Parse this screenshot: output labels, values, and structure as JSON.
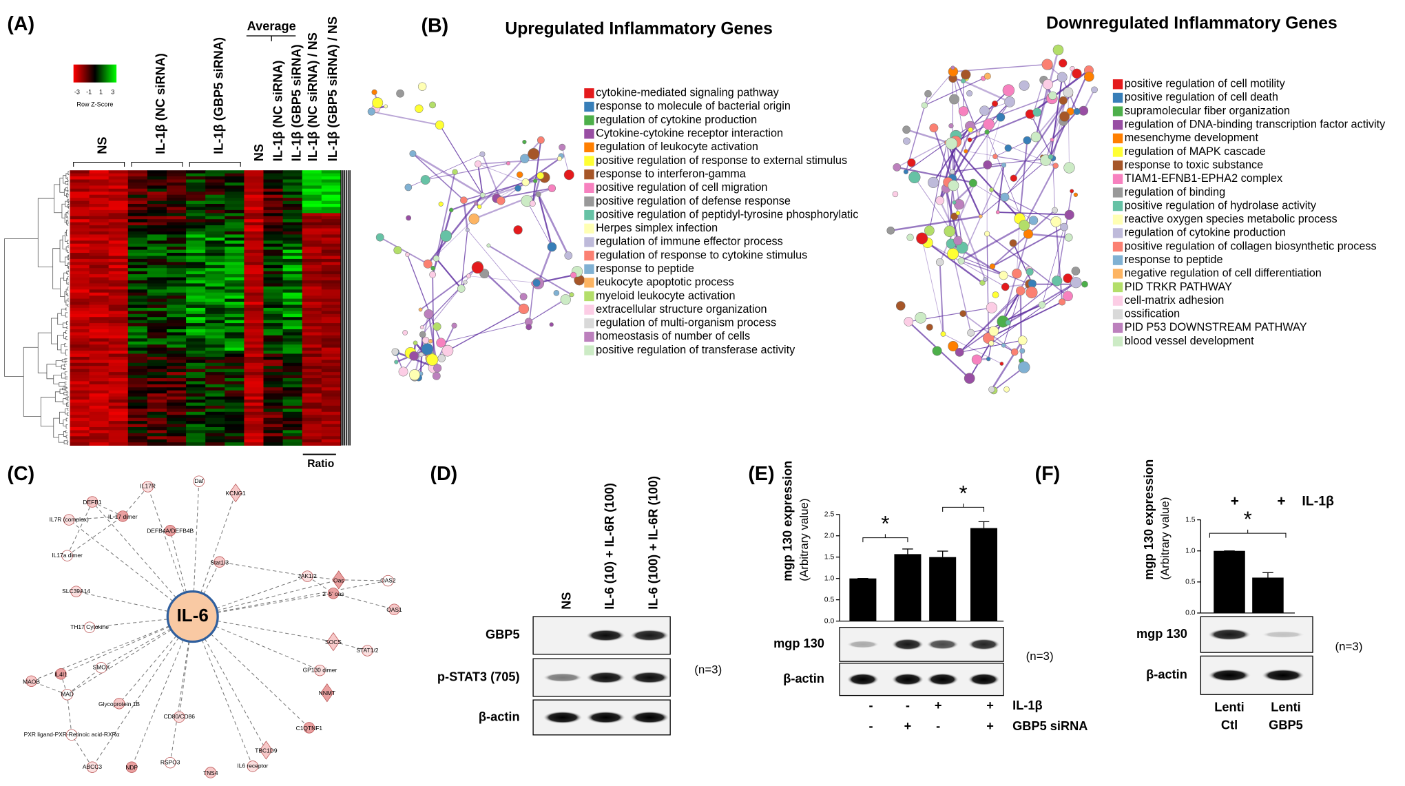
{
  "panel_labels": [
    "(A)",
    "(B)",
    "(C)",
    "(D)",
    "(E)",
    "(F)"
  ],
  "A": {
    "legend_title": "Row Z-Score",
    "legend_ticks": [
      -3,
      -1,
      1,
      3
    ],
    "columns": [
      "NS",
      "IL-1β (NC siRNA)",
      "IL-1β (GBP5 siRNA)"
    ],
    "average_label": "Average",
    "average_columns": [
      "NS",
      "IL-1β (NC siRNA)",
      "IL-1β (GBP5 siRNA)"
    ],
    "ratio_columns": [
      "IL-1β (NC siRNA) / NS",
      "IL-1β (GBP5 siRNA) / NS"
    ],
    "ratio_label": "Ratio"
  },
  "B": {
    "up": {
      "title": "Upregulated Inflammatory Genes",
      "terms": [
        {
          "label": "cytokine-mediated signaling pathway",
          "color": "#e41a1c"
        },
        {
          "label": "response to molecule of bacterial origin",
          "color": "#377eb8"
        },
        {
          "label": "regulation of cytokine production",
          "color": "#4daf4a"
        },
        {
          "label": "Cytokine-cytokine receptor interaction",
          "color": "#984ea3"
        },
        {
          "label": "regulation of leukocyte activation",
          "color": "#ff7f00"
        },
        {
          "label": "positive regulation of response to external stimulus",
          "color": "#ffff33"
        },
        {
          "label": "response to interferon-gamma",
          "color": "#a65628"
        },
        {
          "label": "positive regulation of cell migration",
          "color": "#f781bf"
        },
        {
          "label": "positive regulation of defense response",
          "color": "#999999"
        },
        {
          "label": "positive regulation of peptidyl-tyrosine phosphorylatic",
          "color": "#66c2a5"
        },
        {
          "label": "Herpes simplex infection",
          "color": "#ffffb3"
        },
        {
          "label": "regulation of immune effector process",
          "color": "#bebada"
        },
        {
          "label": "regulation of response to cytokine stimulus",
          "color": "#fb8072"
        },
        {
          "label": "response to peptide",
          "color": "#80b1d3"
        },
        {
          "label": "leukocyte apoptotic process",
          "color": "#fdb462"
        },
        {
          "label": "myeloid leukocyte activation",
          "color": "#b3de69"
        },
        {
          "label": "extracellular structure organization",
          "color": "#fccde5"
        },
        {
          "label": "regulation of multi-organism process",
          "color": "#d9d9d9"
        },
        {
          "label": "homeostasis of number of cells",
          "color": "#bc80bd"
        },
        {
          "label": "positive regulation of transferase activity",
          "color": "#ccebc5"
        }
      ]
    },
    "down": {
      "title": "Downregulated Inflammatory Genes",
      "terms": [
        {
          "label": "positive regulation of cell motility",
          "color": "#e41a1c"
        },
        {
          "label": "positive regulation of cell death",
          "color": "#377eb8"
        },
        {
          "label": "supramolecular fiber organization",
          "color": "#4daf4a"
        },
        {
          "label": "regulation of DNA-binding transcription factor activity",
          "color": "#984ea3"
        },
        {
          "label": "mesenchyme development",
          "color": "#ff7f00"
        },
        {
          "label": "regulation of MAPK cascade",
          "color": "#ffff33"
        },
        {
          "label": "response to toxic substance",
          "color": "#a65628"
        },
        {
          "label": "TIAM1-EFNB1-EPHA2 complex",
          "color": "#f781bf"
        },
        {
          "label": "regulation of binding",
          "color": "#999999"
        },
        {
          "label": "positive regulation of hydrolase activity",
          "color": "#66c2a5"
        },
        {
          "label": "reactive oxygen species metabolic process",
          "color": "#ffffb3"
        },
        {
          "label": "regulation of cytokine production",
          "color": "#bebada"
        },
        {
          "label": "positive regulation of collagen biosynthetic process",
          "color": "#fb8072"
        },
        {
          "label": "response to peptide",
          "color": "#80b1d3"
        },
        {
          "label": "negative regulation of cell differentiation",
          "color": "#fdb462"
        },
        {
          "label": "PID TRKR PATHWAY",
          "color": "#b3de69"
        },
        {
          "label": "cell-matrix adhesion",
          "color": "#fccde5"
        },
        {
          "label": "ossification",
          "color": "#d9d9d9"
        },
        {
          "label": "PID P53 DOWNSTREAM PATHWAY",
          "color": "#bc80bd"
        },
        {
          "label": "blood vessel development",
          "color": "#ccebc5"
        }
      ]
    }
  },
  "C": {
    "center": "IL-6",
    "nodes": [
      "DEFB1",
      "IL17R",
      "IL-17 dimer",
      "Daf",
      "KCNG1",
      "IL7R (complex)",
      "DEFB4A/DEFB4B",
      "IL17a dimer",
      "Stat1/3",
      "JAK1/2",
      "Oas",
      "OAS2",
      "OAS1",
      "SLC39A14",
      "2'-5' oas",
      "TH17 Cytokine",
      "SOCS",
      "STAT1/2",
      "IL4I1",
      "SMOX",
      "MAOB",
      "GP130 dimer",
      "NNMT",
      "MAD",
      "Glycoprotein 1B",
      "CD80/CD86",
      "C1QTNF1",
      "PXR ligand-PXR-Retinoic acid-RXRα",
      "TBC1D9",
      "ABCC3",
      "NDP",
      "RSPO3",
      "TNS4",
      "IL6 receptor"
    ]
  },
  "D": {
    "columns": [
      "NS",
      "IL-6 (10) + IL-6R (100)",
      "IL-6 (100) + IL-6R (100)"
    ],
    "rows": [
      "GBP5",
      "p-STAT3 (705)",
      "β-actin"
    ],
    "n": "(n=3)"
  },
  "E": {
    "chart": {
      "type": "bar",
      "y_label": "mgp 130 expression",
      "y_sublabel": "(Arbitrary value)",
      "values": [
        1.0,
        1.57,
        1.5,
        2.18
      ],
      "errors": [
        0,
        0.12,
        0.14,
        0.15
      ],
      "color": "#000000",
      "ylim": [
        0,
        2.5
      ],
      "yticks": [
        {
          "value": 0,
          "label": "0.0"
        },
        0.5,
        {
          "value": 1,
          "label": "1.0"
        },
        1.5,
        {
          "value": 2,
          "label": "2.0"
        },
        2.5
      ],
      "significance": [
        "*",
        "*"
      ]
    },
    "blot_rows": [
      "mgp 130",
      "β-actin"
    ],
    "n": "(n=3)",
    "conditions": [
      {
        "label": "IL-1β",
        "signs": [
          "-",
          "-",
          "+",
          "+"
        ]
      },
      {
        "label": "GBP5 siRNA",
        "signs": [
          "-",
          "+",
          "-",
          "+"
        ]
      }
    ]
  },
  "F": {
    "chart": {
      "type": "bar",
      "y_label": "mgp 130 expression",
      "y_sublabel": "(Arbitrary value)",
      "categories": [
        [
          "Lenti",
          "Ctl"
        ],
        [
          "Lenti",
          "GBP5"
        ]
      ],
      "values": [
        1.0,
        0.57
      ],
      "errors": [
        0,
        0.08
      ],
      "color": "#000000",
      "ylim": [
        0,
        1.5
      ],
      "yticks": [
        {
          "value": 0,
          "label": "0.0"
        },
        0.5,
        {
          "value": 1,
          "label": "1.0"
        },
        1.5
      ],
      "significance": [
        "*"
      ]
    },
    "treatment": {
      "label": "IL-1β",
      "signs": [
        "+",
        "+"
      ]
    },
    "blot_rows": [
      "mgp 130",
      "β-actin"
    ],
    "n": "(n=3)"
  }
}
